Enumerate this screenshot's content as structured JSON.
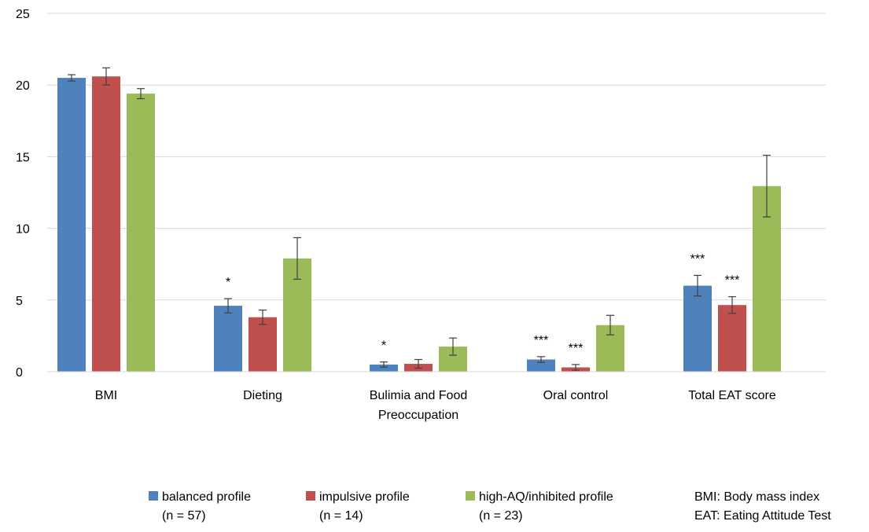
{
  "chart_data": {
    "type": "bar",
    "title": "",
    "xlabel": "",
    "ylabel": "",
    "ylim": [
      0,
      25
    ],
    "yticks": [
      0,
      5,
      10,
      15,
      20,
      25
    ],
    "grid": true,
    "legend_position": "bottom",
    "categories": [
      [
        "BMI"
      ],
      [
        "Dieting"
      ],
      [
        "Bulimia and Food",
        "Preoccupation"
      ],
      [
        "Oral control"
      ],
      [
        "Total EAT score"
      ]
    ],
    "series": [
      {
        "name": "balanced profile",
        "sample": "(n = 57)",
        "color": "#4F81BD",
        "values": [
          20.5,
          4.6,
          0.5,
          0.85,
          6.0
        ],
        "errors": [
          0.22,
          0.5,
          0.18,
          0.2,
          0.72
        ],
        "significance": [
          "",
          "*",
          "*",
          "***",
          "***"
        ]
      },
      {
        "name": "impulsive profile",
        "sample": "(n = 14)",
        "color": "#C0504D",
        "values": [
          20.6,
          3.8,
          0.55,
          0.3,
          4.65
        ],
        "errors": [
          0.6,
          0.5,
          0.3,
          0.2,
          0.58
        ],
        "significance": [
          "",
          "",
          "",
          "***",
          "***"
        ]
      },
      {
        "name": "high-AQ/inhibited profile",
        "sample": "(n = 23)",
        "color": "#9BBB59",
        "values": [
          19.4,
          7.9,
          1.75,
          3.25,
          12.95
        ],
        "errors": [
          0.35,
          1.45,
          0.6,
          0.68,
          2.15
        ],
        "significance": [
          "",
          "",
          "",
          "",
          ""
        ]
      }
    ],
    "notes": [
      "BMI: Body mass index",
      "EAT: Eating Attitude Test"
    ]
  }
}
